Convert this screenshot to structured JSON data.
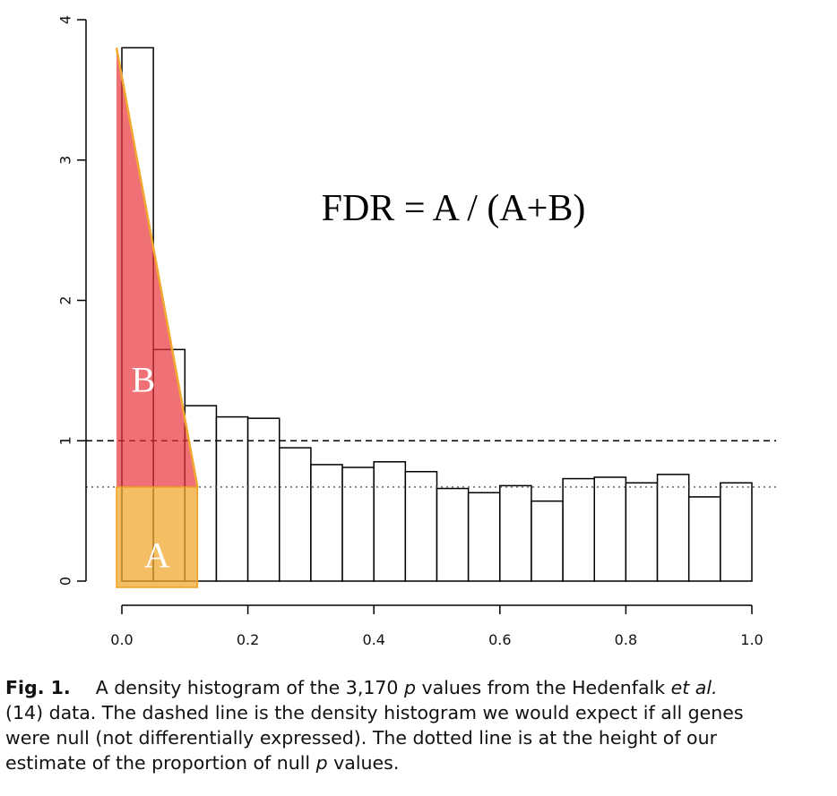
{
  "chart_data": {
    "type": "bar",
    "title": "",
    "xlabel": "",
    "ylabel": "",
    "xlim": [
      0,
      1
    ],
    "ylim": [
      0,
      4
    ],
    "bin_width": 0.05,
    "bin_starts": [
      0.0,
      0.05,
      0.1,
      0.15,
      0.2,
      0.25,
      0.3,
      0.35,
      0.4,
      0.45,
      0.5,
      0.55,
      0.6,
      0.65,
      0.7,
      0.75,
      0.8,
      0.85,
      0.9,
      0.95
    ],
    "values": [
      3.8,
      1.65,
      1.25,
      1.17,
      1.16,
      0.95,
      0.83,
      0.81,
      0.85,
      0.78,
      0.66,
      0.63,
      0.68,
      0.57,
      0.73,
      0.74,
      0.7,
      0.76,
      0.6,
      0.7
    ],
    "x_ticks": [
      "0.0",
      "0.2",
      "0.4",
      "0.6",
      "0.8",
      "1.0"
    ],
    "y_ticks": [
      "0",
      "1",
      "2",
      "3",
      "4"
    ],
    "dashed_line_y": 1.0,
    "dotted_line_y": 0.67,
    "annotation_formula": "FDR = A / (A+B)",
    "region_A": {
      "label": "A",
      "x_range": [
        0,
        0.12
      ],
      "y_range": [
        0,
        0.67
      ],
      "color": "#f0a830"
    },
    "region_B": {
      "label": "B",
      "apex": [
        0,
        3.8
      ],
      "base_x_end": 0.12,
      "base_y": 0.67,
      "color": "#e8343a"
    }
  },
  "caption": {
    "fig_label": "Fig. 1.",
    "line1_a": "A density histogram of the 3,170 ",
    "p": "p",
    "line1_b": " values from the Hedenfalk ",
    "etal": "et al.",
    "line2": "(14) data. The dashed line is the density histogram we would expect if all genes",
    "line3": "were null (not differentially expressed). The dotted line is at the height of our",
    "line4_a": "estimate of the proportion of null ",
    "line4_b": " values."
  }
}
